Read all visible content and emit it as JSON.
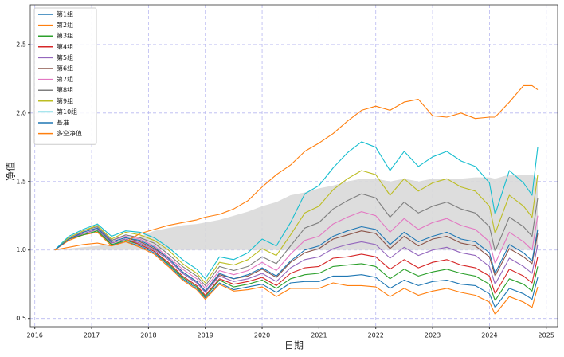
{
  "chart_data": {
    "type": "line",
    "xlabel": "日期",
    "ylabel": "净值",
    "x": [
      2016.35,
      2016.6,
      2016.85,
      2017.1,
      2017.35,
      2017.6,
      2017.85,
      2018.1,
      2018.35,
      2018.6,
      2018.85,
      2019.0,
      2019.25,
      2019.5,
      2019.75,
      2020.0,
      2020.25,
      2020.5,
      2020.75,
      2021.0,
      2021.25,
      2021.5,
      2021.75,
      2022.0,
      2022.25,
      2022.5,
      2022.75,
      2023.0,
      2023.25,
      2023.5,
      2023.75,
      2024.0,
      2024.1,
      2024.35,
      2024.6,
      2024.75,
      2024.85
    ],
    "xlim": [
      2015.92,
      2025.2
    ],
    "xticks": [
      2016,
      2017,
      2018,
      2019,
      2020,
      2021,
      2022,
      2023,
      2024,
      2025
    ],
    "ylim": [
      0.44,
      2.79
    ],
    "yticks": [
      0.5,
      {
        "value": 1,
        "label": "1.0"
      },
      1.5,
      {
        "value": 2,
        "label": "2.0"
      },
      2.5
    ],
    "grid": true,
    "legend": "upper left",
    "band": {
      "color": "#d9d9d9",
      "base": 1,
      "values": [
        1.0,
        1.01,
        1.02,
        1.03,
        1.04,
        1.06,
        1.1,
        1.14,
        1.16,
        1.18,
        1.19,
        1.2,
        1.22,
        1.25,
        1.28,
        1.32,
        1.35,
        1.4,
        1.42,
        1.45,
        1.47,
        1.5,
        1.52,
        1.52,
        1.5,
        1.52,
        1.5,
        1.52,
        1.52,
        1.52,
        1.53,
        1.53,
        1.52,
        1.55,
        1.55,
        1.55,
        1.52
      ]
    },
    "series": [
      {
        "name": "第1组",
        "color": "#1f77b4",
        "values": [
          1.0,
          1.08,
          1.11,
          1.14,
          1.04,
          1.06,
          1.03,
          0.98,
          0.89,
          0.79,
          0.72,
          0.65,
          0.76,
          0.71,
          0.73,
          0.75,
          0.69,
          0.76,
          0.77,
          0.77,
          0.81,
          0.81,
          0.82,
          0.8,
          0.72,
          0.78,
          0.74,
          0.77,
          0.78,
          0.75,
          0.74,
          0.68,
          0.58,
          0.72,
          0.68,
          0.64,
          0.8
        ]
      },
      {
        "name": "第2组",
        "color": "#ff7f0e",
        "values": [
          1.0,
          1.07,
          1.11,
          1.13,
          1.03,
          1.06,
          1.02,
          0.97,
          0.88,
          0.78,
          0.71,
          0.64,
          0.75,
          0.7,
          0.71,
          0.73,
          0.66,
          0.72,
          0.72,
          0.72,
          0.76,
          0.74,
          0.74,
          0.73,
          0.66,
          0.72,
          0.67,
          0.7,
          0.72,
          0.69,
          0.67,
          0.62,
          0.53,
          0.66,
          0.62,
          0.58,
          0.73
        ]
      },
      {
        "name": "第3组",
        "color": "#2ca02c",
        "values": [
          1.0,
          1.08,
          1.11,
          1.14,
          1.04,
          1.07,
          1.04,
          0.99,
          0.9,
          0.8,
          0.73,
          0.66,
          0.78,
          0.73,
          0.75,
          0.78,
          0.72,
          0.79,
          0.82,
          0.83,
          0.88,
          0.89,
          0.9,
          0.88,
          0.79,
          0.86,
          0.81,
          0.84,
          0.86,
          0.83,
          0.81,
          0.75,
          0.63,
          0.79,
          0.75,
          0.7,
          0.88
        ]
      },
      {
        "name": "第4组",
        "color": "#d62728",
        "values": [
          1.0,
          1.08,
          1.12,
          1.15,
          1.05,
          1.08,
          1.04,
          0.99,
          0.91,
          0.81,
          0.74,
          0.67,
          0.79,
          0.75,
          0.77,
          0.8,
          0.74,
          0.83,
          0.87,
          0.88,
          0.94,
          0.95,
          0.97,
          0.95,
          0.86,
          0.93,
          0.87,
          0.91,
          0.93,
          0.89,
          0.87,
          0.81,
          0.68,
          0.86,
          0.81,
          0.76,
          0.95
        ]
      },
      {
        "name": "第5组",
        "color": "#9467bd",
        "values": [
          1.0,
          1.08,
          1.12,
          1.15,
          1.05,
          1.08,
          1.05,
          1.0,
          0.93,
          0.83,
          0.76,
          0.69,
          0.81,
          0.77,
          0.79,
          0.83,
          0.77,
          0.87,
          0.93,
          0.95,
          1.01,
          1.04,
          1.06,
          1.04,
          0.94,
          1.02,
          0.96,
          1.0,
          1.02,
          0.98,
          0.96,
          0.88,
          0.75,
          0.94,
          0.88,
          0.83,
          1.04
        ]
      },
      {
        "name": "第6组",
        "color": "#8c564b",
        "values": [
          1.0,
          1.08,
          1.13,
          1.16,
          1.06,
          1.09,
          1.06,
          1.01,
          0.94,
          0.84,
          0.77,
          0.7,
          0.82,
          0.79,
          0.81,
          0.86,
          0.8,
          0.91,
          0.98,
          1.01,
          1.08,
          1.11,
          1.14,
          1.12,
          1.01,
          1.1,
          1.03,
          1.08,
          1.1,
          1.05,
          1.03,
          0.95,
          0.81,
          1.01,
          0.95,
          0.9,
          1.12
        ]
      },
      {
        "name": "第7组",
        "color": "#e377c2",
        "values": [
          1.0,
          1.09,
          1.13,
          1.16,
          1.07,
          1.1,
          1.08,
          1.03,
          0.95,
          0.86,
          0.79,
          0.72,
          0.85,
          0.82,
          0.85,
          0.91,
          0.85,
          0.97,
          1.07,
          1.1,
          1.19,
          1.24,
          1.28,
          1.25,
          1.13,
          1.23,
          1.15,
          1.2,
          1.23,
          1.18,
          1.15,
          1.06,
          0.9,
          1.13,
          1.06,
          1.0,
          1.25
        ]
      },
      {
        "name": "第8组",
        "color": "#7f7f7f",
        "values": [
          1.0,
          1.09,
          1.14,
          1.17,
          1.07,
          1.11,
          1.09,
          1.05,
          0.97,
          0.88,
          0.81,
          0.74,
          0.88,
          0.85,
          0.88,
          0.95,
          0.9,
          1.03,
          1.16,
          1.2,
          1.3,
          1.36,
          1.41,
          1.38,
          1.24,
          1.35,
          1.27,
          1.32,
          1.35,
          1.3,
          1.27,
          1.17,
          0.99,
          1.24,
          1.17,
          1.1,
          1.38
        ]
      },
      {
        "name": "第9组",
        "color": "#bcbd22",
        "values": [
          1.0,
          1.09,
          1.14,
          1.18,
          1.08,
          1.13,
          1.11,
          1.07,
          1.0,
          0.9,
          0.83,
          0.76,
          0.91,
          0.89,
          0.93,
          1.01,
          0.96,
          1.11,
          1.27,
          1.32,
          1.44,
          1.52,
          1.58,
          1.55,
          1.4,
          1.52,
          1.43,
          1.49,
          1.52,
          1.46,
          1.43,
          1.32,
          1.12,
          1.4,
          1.32,
          1.24,
          1.55
        ]
      },
      {
        "name": "第10组",
        "color": "#17becf",
        "values": [
          1.0,
          1.1,
          1.15,
          1.19,
          1.1,
          1.14,
          1.13,
          1.09,
          1.02,
          0.93,
          0.86,
          0.79,
          0.95,
          0.93,
          0.98,
          1.08,
          1.03,
          1.2,
          1.41,
          1.47,
          1.6,
          1.71,
          1.79,
          1.75,
          1.58,
          1.72,
          1.61,
          1.68,
          1.72,
          1.65,
          1.61,
          1.49,
          1.26,
          1.58,
          1.49,
          1.4,
          1.75
        ]
      },
      {
        "name": "基准",
        "color": "#1f77b4",
        "values": [
          1.0,
          1.08,
          1.13,
          1.16,
          1.06,
          1.09,
          1.07,
          1.02,
          0.94,
          0.84,
          0.77,
          0.7,
          0.83,
          0.79,
          0.82,
          0.87,
          0.81,
          0.92,
          1.0,
          1.03,
          1.1,
          1.14,
          1.17,
          1.15,
          1.04,
          1.13,
          1.06,
          1.1,
          1.13,
          1.08,
          1.06,
          0.98,
          0.83,
          1.04,
          0.98,
          0.92,
          1.15
        ]
      },
      {
        "name": "多空净值",
        "color": "#ff7f0e",
        "values": [
          1.0,
          1.02,
          1.04,
          1.05,
          1.03,
          1.06,
          1.12,
          1.15,
          1.18,
          1.2,
          1.22,
          1.24,
          1.26,
          1.3,
          1.36,
          1.46,
          1.55,
          1.62,
          1.72,
          1.78,
          1.85,
          1.94,
          2.02,
          2.05,
          2.02,
          2.08,
          2.1,
          1.98,
          1.97,
          2.0,
          1.96,
          1.97,
          1.97,
          2.08,
          2.2,
          2.2,
          2.17
        ]
      }
    ]
  }
}
